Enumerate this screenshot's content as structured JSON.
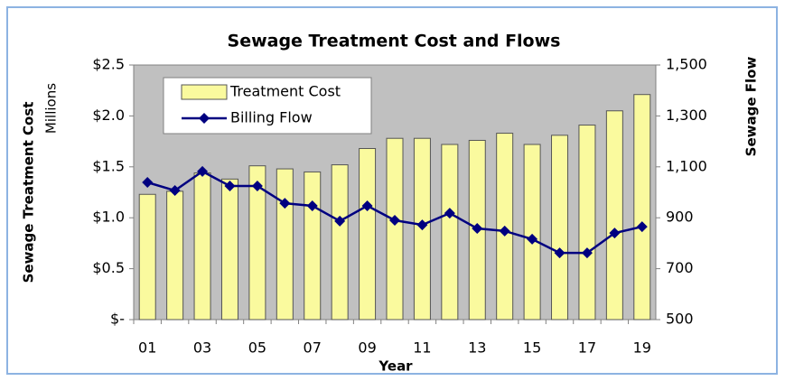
{
  "chart_data": {
    "type": "bar",
    "title": "Sewage Treatment Cost and Flows",
    "y_label": "Sewage Treatment Cost",
    "y_unit_label": "Millions",
    "y2_label": "Sewage Flow",
    "x_label": "Year",
    "categories": [
      "01",
      null,
      "03",
      null,
      "05",
      null,
      "07",
      null,
      "09",
      null,
      "11",
      null,
      "13",
      null,
      "15",
      null,
      "17",
      null,
      "19"
    ],
    "series": [
      {
        "name": "Treatment Cost",
        "type": "bar",
        "color": "#fafa9e",
        "values": [
          1.23,
          1.26,
          1.44,
          1.38,
          1.51,
          1.48,
          1.45,
          1.52,
          1.68,
          1.78,
          1.78,
          1.72,
          1.76,
          1.83,
          1.72,
          1.81,
          1.91,
          2.05,
          2.21
        ]
      },
      {
        "name": "Billing Flow",
        "type": "line",
        "axis": "y2",
        "color": "#000080",
        "values": [
          1039,
          1007,
          1082,
          1025,
          1025,
          957,
          947,
          887,
          947,
          890,
          872,
          918,
          858,
          848,
          816,
          762,
          762,
          840,
          865
        ]
      }
    ],
    "ylim": [
      0,
      2.5
    ],
    "yticks": [
      {
        "value": 0,
        "label": "$-"
      },
      {
        "value": 0.5,
        "label": "$0.5"
      },
      {
        "value": 1,
        "label": "$1.0"
      },
      {
        "value": 1.5,
        "label": "$1.5"
      },
      {
        "value": 2,
        "label": "$2.0"
      },
      {
        "value": 2.5,
        "label": "$2.5"
      }
    ],
    "y2lim": [
      500,
      1500
    ],
    "y2ticks": [
      500,
      700,
      900,
      {
        "value": 1100,
        "label": "1,100"
      },
      {
        "value": 1300,
        "label": "1,300"
      },
      {
        "value": 1500,
        "label": "1,500"
      }
    ],
    "plot_background": "#c0c0c0",
    "legend": "upper left"
  }
}
